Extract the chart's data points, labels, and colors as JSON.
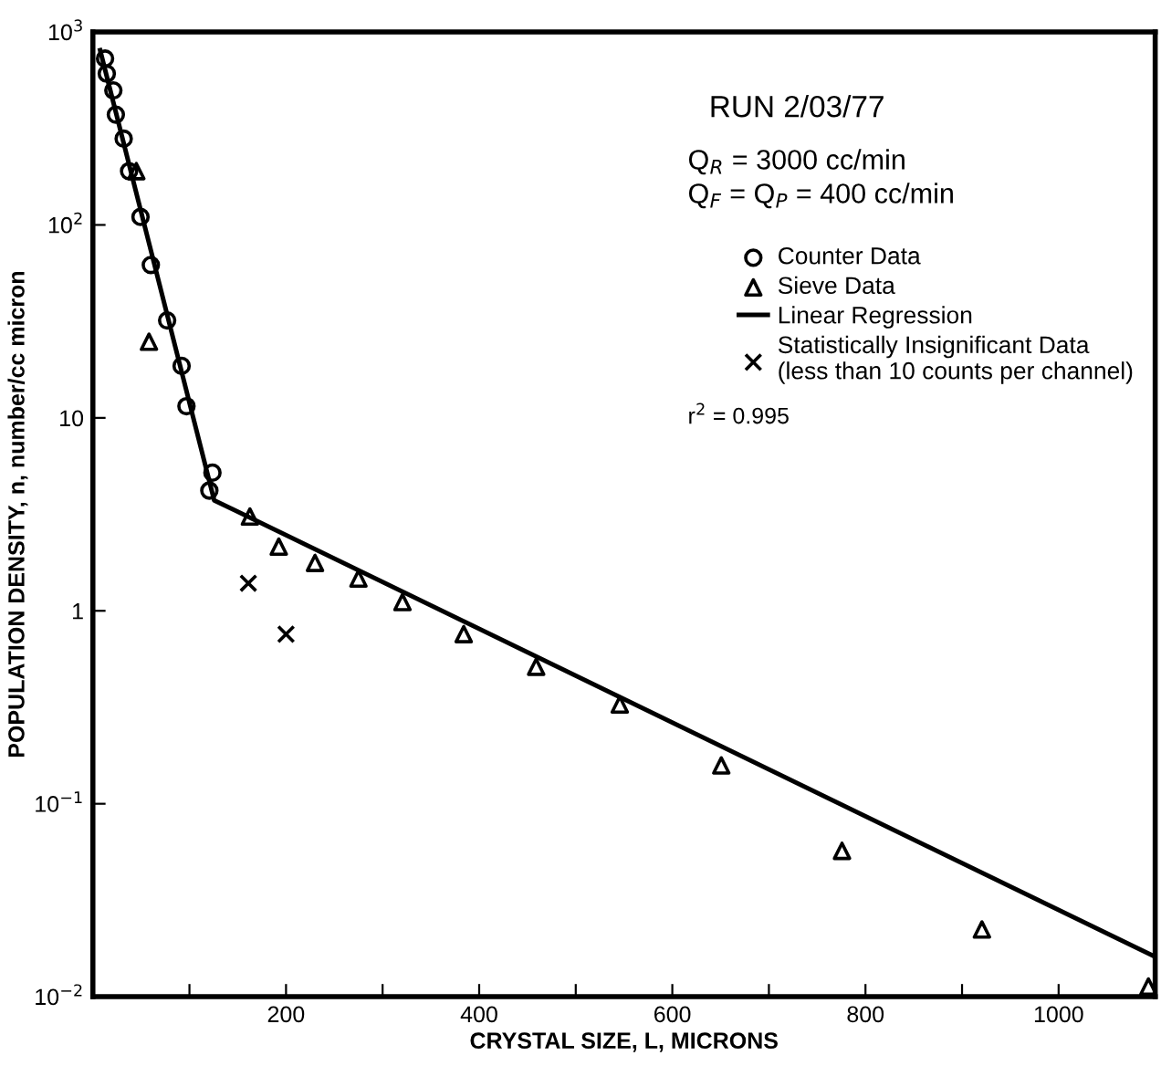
{
  "chart_data": {
    "type": "scatter",
    "xlabel": "CRYSTAL SIZE, L, MICRONS",
    "ylabel": "POPULATION DENSITY, n, number/cc micron",
    "log": "y",
    "xlim": [
      0,
      1100
    ],
    "ylim": [
      0.01,
      1000
    ],
    "xticks": [
      {
        "value": 100,
        "label": null
      },
      200,
      {
        "value": 300,
        "label": null
      },
      400,
      {
        "value": 500,
        "label": null
      },
      600,
      {
        "value": 700,
        "label": null
      },
      800,
      {
        "value": 900,
        "label": null
      },
      1000
    ],
    "yticks": [
      {
        "value": 0.01,
        "label": "10$^{−2}$"
      },
      {
        "value": 0.1,
        "label": "10$^{−1}$"
      },
      1,
      10,
      {
        "value": 100,
        "label": "10$^{2}$"
      },
      {
        "value": 1000,
        "label": "10$^{3}$"
      }
    ],
    "grid": false,
    "legend": "top right",
    "series": [
      {
        "name": "Counter Data",
        "marker": "circle",
        "color": "#000000",
        "x": [
          12.6,
          14.4,
          21.2,
          23.8,
          31.9,
          37.5,
          49.3,
          60,
          76.9,
          91.9,
          96.9,
          123.8,
          120.6
        ],
        "values": [
          728,
          608,
          498,
          373,
          280,
          190,
          110,
          62,
          32,
          18.6,
          11.5,
          5.2,
          4.2
        ]
      },
      {
        "name": "Sieve Data",
        "marker": "triangle",
        "color": "#000000",
        "x": [
          45,
          58.1,
          162.6,
          192.5,
          230,
          275,
          320.6,
          384,
          459,
          545.6,
          650.7,
          775.7,
          920.6,
          1093
        ],
        "values": [
          190,
          24.8,
          3.08,
          2.15,
          1.77,
          1.47,
          1.11,
          0.757,
          0.513,
          0.327,
          0.158,
          0.057,
          0.0223,
          0.0113
        ]
      },
      {
        "name": "Linear Regression",
        "type": "line",
        "marker": "none",
        "line_style": "solid",
        "color": "#000000",
        "x": [
          7.5,
          125.6,
          1100
        ],
        "values": [
          805,
          3.74,
          0.0161
        ]
      },
      {
        "name": "Statistically Insignificant Data\n(less than 10 counts per channel)",
        "marker": "cross",
        "color": "#000000",
        "x": [
          161,
          200
        ],
        "values": [
          1.39,
          0.757
        ]
      }
    ],
    "annotations": [
      "RUN 2/03/77",
      "Q$_{R}$ = 3000 cc/min",
      "Q$_{F}$ = Q$_{P}$ = 400 cc/min",
      "r$^{2}$ = 0.995"
    ]
  }
}
